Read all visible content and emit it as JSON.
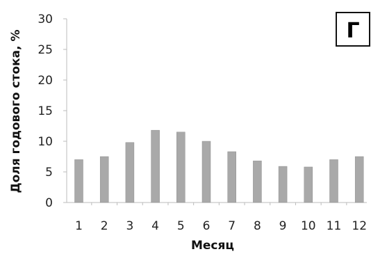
{
  "chart_data": {
    "type": "bar",
    "title": "",
    "panel_label": "Г",
    "xlabel": "Месяц",
    "ylabel": "Доля годового стока, %",
    "categories": [
      "1",
      "2",
      "3",
      "4",
      "5",
      "6",
      "7",
      "8",
      "9",
      "10",
      "11",
      "12"
    ],
    "values": [
      7,
      7.5,
      9.8,
      11.8,
      11.5,
      10,
      8.3,
      6.8,
      5.9,
      5.8,
      7,
      7.5
    ],
    "y_ticks": [
      "0",
      "5",
      "10",
      "15",
      "20",
      "25",
      "30"
    ],
    "ylim": [
      0,
      30
    ],
    "grid": false,
    "bar_color": "#a9a9a9"
  }
}
